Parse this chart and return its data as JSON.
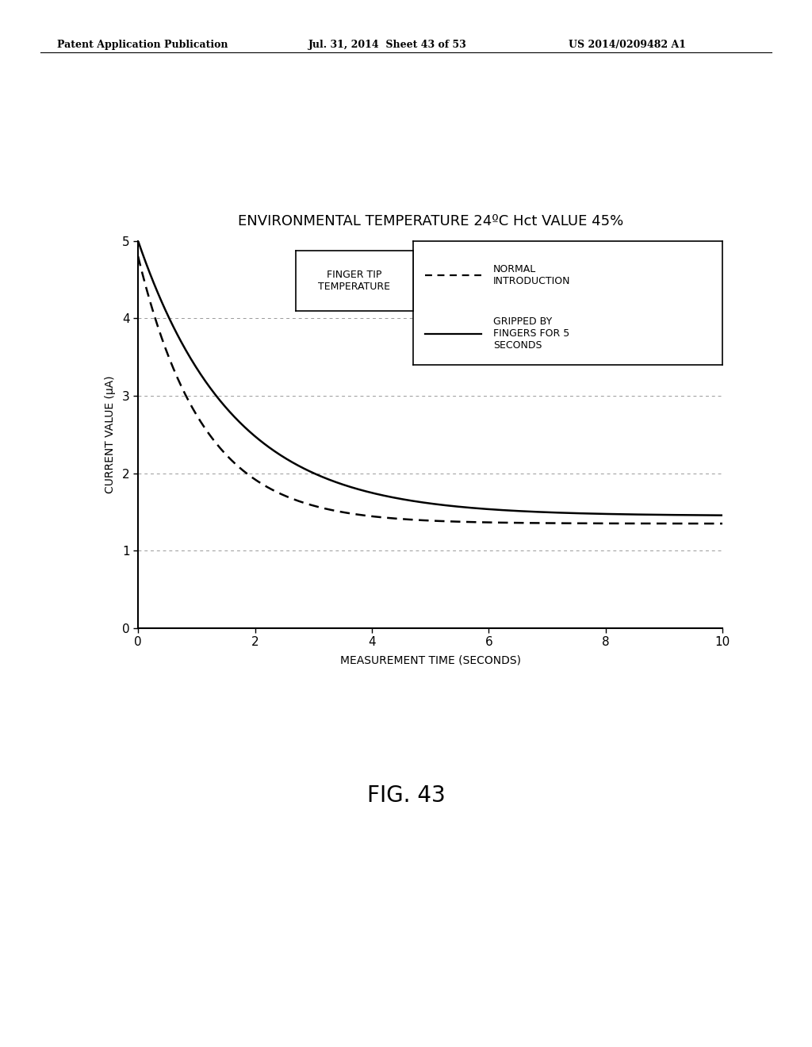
{
  "title": "ENVIRONMENTAL TEMPERATURE 24ºC Hct VALUE 45%",
  "xlabel": "MEASUREMENT TIME (SECONDS)",
  "ylabel": "CURRENT VALUE (μA)",
  "xlim": [
    0,
    10
  ],
  "ylim": [
    0,
    5
  ],
  "xticks": [
    0,
    2,
    4,
    6,
    8,
    10
  ],
  "yticks": [
    0,
    1,
    2,
    3,
    4,
    5
  ],
  "header_left": "Patent Application Publication",
  "header_center": "Jul. 31, 2014  Sheet 43 of 53",
  "header_right": "US 2014/0209482 A1",
  "figure_label": "FIG. 43",
  "legend_box_label": "FINGER TIP\nTEMPERATURE",
  "legend_dashed_label": "NORMAL\nINTRODUCTION",
  "legend_solid_label": "GRIPPED BY\nFINGERS FOR 5\nSECONDS",
  "background_color": "#ffffff",
  "line_color": "#000000",
  "grid_color": "#999999",
  "title_fontsize": 13,
  "label_fontsize": 10,
  "tick_fontsize": 11,
  "solid_start": 5.0,
  "solid_end": 1.45,
  "solid_decay": 0.62,
  "solid_asymptote": 1.45,
  "dashed_start": 4.8,
  "dashed_end": 1.35,
  "dashed_decay": 0.9,
  "dashed_asymptote": 1.35
}
